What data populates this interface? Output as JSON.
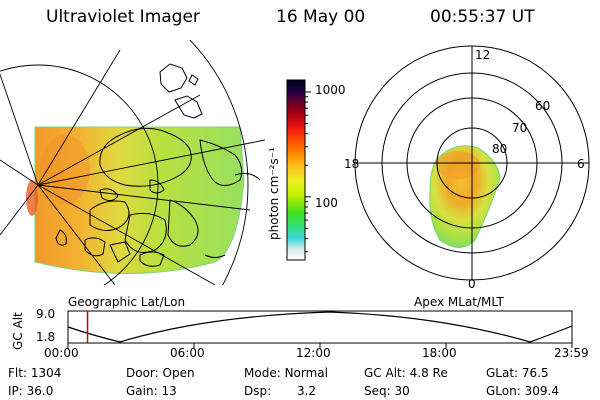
{
  "header": {
    "title": "Ultraviolet Imager",
    "date": "16 May 00",
    "time": "00:55:37 UT"
  },
  "colorbar": {
    "unit_label": "photon cm⁻²s⁻¹",
    "ticks": [
      {
        "value": 1000,
        "label": "1000"
      },
      {
        "value": 100,
        "label": "100"
      }
    ],
    "range": [
      25,
      1300
    ]
  },
  "geo_map": {
    "caption": "Geographic Lat/Lon"
  },
  "polar_plot": {
    "caption": "Apex MLat/MLT",
    "mlt_labels": {
      "top": "12",
      "left": "18",
      "right": "6",
      "bottom": "0"
    },
    "lat_labels": [
      "60",
      "70",
      "80"
    ]
  },
  "timeline": {
    "ylabel": "GC Alt",
    "y_ticks": [
      "9.0",
      "1.8"
    ],
    "x_ticks": [
      "00:00",
      "06:00",
      "12:00",
      "18:00",
      "23:59"
    ],
    "current_time_hours": 0.93,
    "colors": {
      "marker": "#cc0000",
      "trace": "#000000"
    }
  },
  "info": {
    "flt_label": "Flt:",
    "flt_value": "1304",
    "door_label": "Door:",
    "door_value": "Open",
    "mode_label": "Mode:",
    "mode_value": "Normal",
    "gcalt_label": "GC Alt:",
    "gcalt_value": "4.8 Re",
    "glat_label": "GLat:",
    "glat_value": "76.5",
    "ip_label": "IP:",
    "ip_value": "36.0",
    "gain_label": "Gain:",
    "gain_value": "13",
    "dsp_label": "Dsp:",
    "dsp_value": "3.2",
    "seq_label": "Seq:",
    "seq_value": "30",
    "glon_label": "GLon:",
    "glon_value": "309.4"
  }
}
